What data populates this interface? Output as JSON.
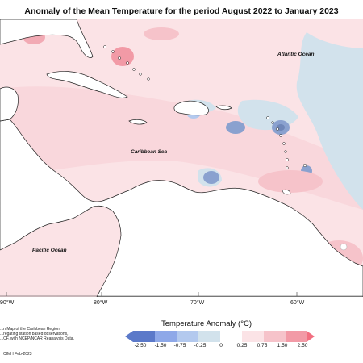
{
  "title": "Anomaly of the Mean Temperature for the period August 2022 to January 2023",
  "labels": {
    "atlantic": "Atlantic Ocean",
    "caribbean": "Caribbean Sea",
    "pacific": "Pacific Ocean"
  },
  "longitudes": [
    "90°W",
    "80°W",
    "70°W",
    "60°W"
  ],
  "credit_lines": [
    "...n Map of the Caribbean Region",
    "...regating station based observations,",
    "...CF, with NCEP/NCAR Reanalysis Data."
  ],
  "footer_code": "CIMH Feb-2023",
  "legend": {
    "title": "Temperature Anomaly (°C)",
    "ticks": [
      "-2.50",
      "-1.50",
      "-0.75",
      "-0.25",
      "0",
      "0.25",
      "0.75",
      "1.50",
      "2.50"
    ],
    "colors": [
      "#5b79c9",
      "#8ea8e8",
      "#b3c9ee",
      "#d2e2ec",
      "#ffffff",
      "#fbe3e6",
      "#f6c3ca",
      "#f29aa6",
      "#f26f80"
    ]
  },
  "colors": {
    "warm_light": "#fbe3e6",
    "warm_mid": "#f6c3ca",
    "warm_strong": "#f29aa6",
    "cool_light": "#d2e2ec",
    "cool_mid": "#b3c9ee",
    "cool_strong": "#6f86b8",
    "land": "#ffffff"
  }
}
